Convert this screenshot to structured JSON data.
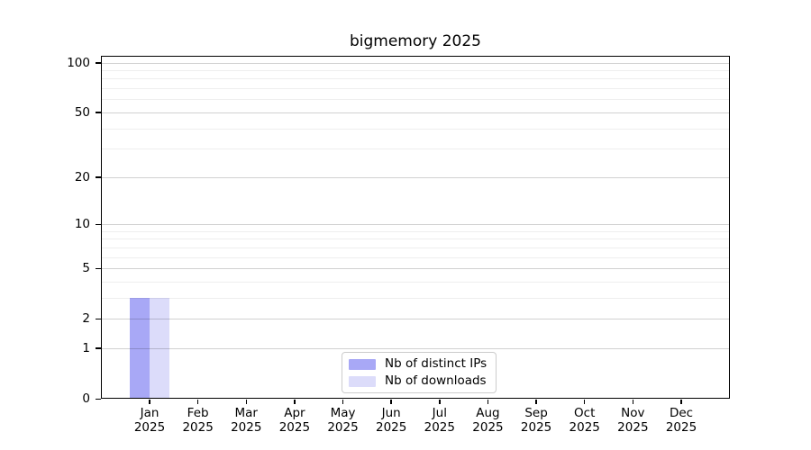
{
  "title": "bigmemory 2025",
  "chart_data": {
    "type": "bar",
    "title": "bigmemory 2025",
    "categories": [
      "Jan 2025",
      "Feb 2025",
      "Mar 2025",
      "Apr 2025",
      "May 2025",
      "Jun 2025",
      "Jul 2025",
      "Aug 2025",
      "Sep 2025",
      "Oct 2025",
      "Nov 2025",
      "Dec 2025"
    ],
    "series": [
      {
        "name": "Nb of distinct IPs",
        "color": "#a8a8f6",
        "values": [
          3,
          0,
          0,
          0,
          0,
          0,
          0,
          0,
          0,
          0,
          0,
          0
        ]
      },
      {
        "name": "Nb of downloads",
        "color": "#dcdcfa",
        "values": [
          3,
          0,
          0,
          0,
          0,
          0,
          0,
          0,
          0,
          0,
          0,
          0
        ]
      }
    ],
    "xlabel": "",
    "ylabel": "",
    "yscale": "log1p",
    "ylim": [
      0,
      110
    ],
    "yticks": [
      0,
      1,
      2,
      5,
      10,
      20,
      50,
      100
    ],
    "minor_yticks": [
      3,
      4,
      6,
      7,
      8,
      9,
      30,
      40,
      60,
      70,
      80,
      90
    ],
    "grid": true,
    "legend_position": "lower center",
    "legend_border_color": "#cccccc"
  }
}
